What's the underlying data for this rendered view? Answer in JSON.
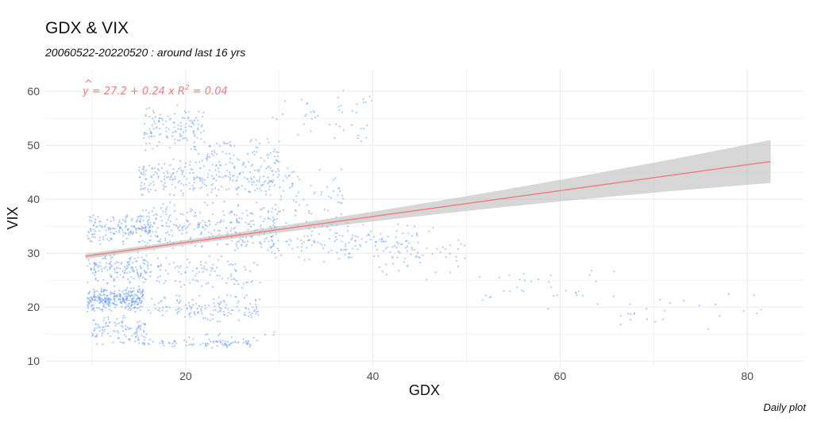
{
  "header": {
    "title": "GDX & VIX",
    "subtitle": "20060522-20220520 : around last 16 yrs",
    "caption": "Daily plot"
  },
  "chart_data": {
    "type": "scatter",
    "xlabel": "GDX",
    "ylabel": "VIX",
    "xlim": [
      5,
      86
    ],
    "ylim": [
      9,
      64
    ],
    "x_ticks": [
      20,
      40,
      60,
      80
    ],
    "y_ticks": [
      10,
      20,
      30,
      40,
      50,
      60
    ],
    "grid": true,
    "point_color": "#6fa0f5",
    "regression": {
      "intercept": 27.2,
      "slope": 0.24,
      "r_squared": 0.04,
      "x_range": [
        9.3,
        82.5
      ],
      "line_color": "#f08080",
      "band_color": "#bdbdbd"
    },
    "annotation": {
      "text_yhat": "y",
      "text_eq": " = 27.2 + 0.24 x   R",
      "text_sup": "2",
      "text_tail": " = 0.04"
    },
    "clusters": [
      {
        "x": [
          9.5,
          15.5
        ],
        "y": [
          19.0,
          24.0
        ],
        "n": 320
      },
      {
        "x": [
          10.0,
          16.0
        ],
        "y": [
          12.8,
          19.0
        ],
        "n": 110
      },
      {
        "x": [
          9.5,
          16.0
        ],
        "y": [
          24.0,
          30.5
        ],
        "n": 150
      },
      {
        "x": [
          9.5,
          17.0
        ],
        "y": [
          31.5,
          37.5
        ],
        "n": 170
      },
      {
        "x": [
          14.5,
          27.0
        ],
        "y": [
          12.5,
          14.0
        ],
        "n": 70
      },
      {
        "x": [
          16.0,
          28.0
        ],
        "y": [
          17.0,
          22.5
        ],
        "n": 140
      },
      {
        "x": [
          15.0,
          28.0
        ],
        "y": [
          23.0,
          30.0
        ],
        "n": 110
      },
      {
        "x": [
          15.0,
          30.0
        ],
        "y": [
          30.0,
          40.0
        ],
        "n": 280
      },
      {
        "x": [
          15.0,
          30.0
        ],
        "y": [
          40.0,
          48.0
        ],
        "n": 260
      },
      {
        "x": [
          15.5,
          22.0
        ],
        "y": [
          48.0,
          58.0
        ],
        "n": 130
      },
      {
        "x": [
          22.0,
          30.0
        ],
        "y": [
          45.0,
          52.0
        ],
        "n": 70
      },
      {
        "x": [
          28.0,
          45.0
        ],
        "y": [
          28.0,
          36.0
        ],
        "n": 160
      },
      {
        "x": [
          30.0,
          37.0
        ],
        "y": [
          36.0,
          47.0
        ],
        "n": 60
      },
      {
        "x": [
          29.0,
          40.0
        ],
        "y": [
          50.0,
          61.0
        ],
        "n": 45
      },
      {
        "x": [
          40.0,
          50.0
        ],
        "y": [
          25.0,
          35.0
        ],
        "n": 55
      },
      {
        "x": [
          50.0,
          66.0
        ],
        "y": [
          19.0,
          28.0
        ],
        "n": 35
      },
      {
        "x": [
          66.0,
          82.0
        ],
        "y": [
          15.5,
          25.0
        ],
        "n": 25
      },
      {
        "x": [
          20.0,
          30.0
        ],
        "y": [
          12.0,
          16.0
        ],
        "n": 30
      }
    ]
  }
}
